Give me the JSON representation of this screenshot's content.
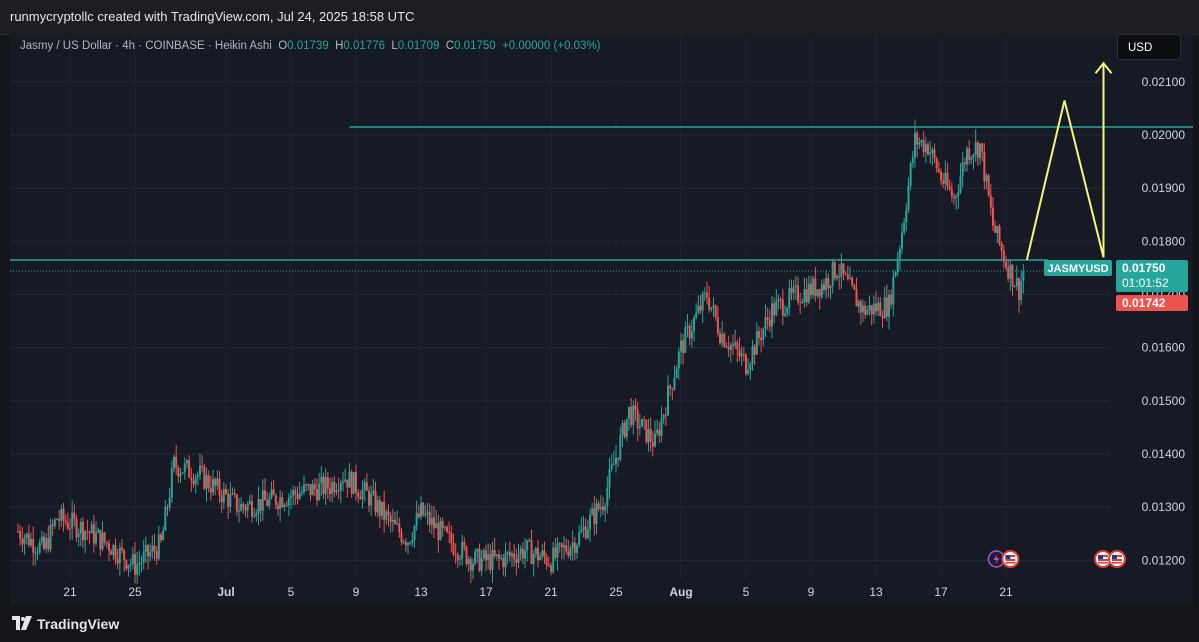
{
  "header": {
    "credit": "runmycryptollc created with TradingView.com, Jul 24, 2025 18:58 UTC"
  },
  "legend": {
    "symbol_desc": "Jasmy / US Dollar · 4h · COINBASE · Heikin Ashi",
    "open_label": "O",
    "open": "0.01739",
    "high_label": "H",
    "high": "0.01776",
    "low_label": "L",
    "low": "0.01709",
    "close_label": "C",
    "close": "0.01750",
    "change": "+0.00000 (+0.03%)"
  },
  "currency_button": "USD",
  "price_badges": {
    "symbol": "JASMYUSD",
    "last_price": "0.01750",
    "countdown": "01:01:52",
    "bid_price": "0.01742"
  },
  "footer": {
    "brand": "TradingView"
  },
  "colors": {
    "up": "#26a69a",
    "down": "#ef5350",
    "level_line": "#26a69a",
    "projection": "#f5f57a",
    "background": "#161a25"
  },
  "chart_data": {
    "type": "candlestick",
    "style": "Heikin Ashi",
    "interval": "4h",
    "exchange": "COINBASE",
    "ylim": [
      0.01165,
      0.0219
    ],
    "y_ticks": [
      "0.01200",
      "0.01300",
      "0.01400",
      "0.01500",
      "0.01600",
      "0.01700",
      "0.01800",
      "0.01900",
      "0.02000",
      "0.02100"
    ],
    "x_ticks": [
      "21",
      "25",
      "Jul",
      "5",
      "9",
      "13",
      "17",
      "21",
      "25",
      "Aug",
      "5",
      "9",
      "13",
      "17",
      "21"
    ],
    "price_path": [
      [
        0,
        0.01255
      ],
      [
        2,
        0.0122
      ],
      [
        3,
        0.0128
      ],
      [
        5,
        0.0126
      ],
      [
        7,
        0.0123
      ],
      [
        9,
        0.0119
      ],
      [
        11,
        0.0123
      ],
      [
        12,
        0.0138
      ],
      [
        14,
        0.0136
      ],
      [
        17,
        0.013
      ],
      [
        19,
        0.0131
      ],
      [
        22,
        0.0133
      ],
      [
        24,
        0.0134
      ],
      [
        25,
        0.0136
      ],
      [
        27,
        0.0132
      ],
      [
        29,
        0.0126
      ],
      [
        30,
        0.0124
      ],
      [
        31,
        0.0129
      ],
      [
        33,
        0.0124
      ],
      [
        35,
        0.012
      ],
      [
        37,
        0.012
      ],
      [
        39,
        0.0122
      ],
      [
        41,
        0.012
      ],
      [
        43,
        0.0124
      ],
      [
        45,
        0.0131
      ],
      [
        47,
        0.0148
      ],
      [
        49,
        0.0142
      ],
      [
        51,
        0.016
      ],
      [
        53,
        0.017
      ],
      [
        54,
        0.0163
      ],
      [
        56,
        0.0157
      ],
      [
        58,
        0.0167
      ],
      [
        60,
        0.017
      ],
      [
        62,
        0.0172
      ],
      [
        63,
        0.0175
      ],
      [
        65,
        0.0167
      ],
      [
        67,
        0.0168
      ],
      [
        68,
        0.0182
      ],
      [
        69,
        0.0199
      ],
      [
        70,
        0.0198
      ],
      [
        71,
        0.0192
      ],
      [
        72,
        0.0188
      ],
      [
        73,
        0.0197
      ],
      [
        74,
        0.0198
      ],
      [
        75,
        0.0183
      ],
      [
        76,
        0.0176
      ],
      [
        77,
        0.0171
      ],
      [
        77.4,
        0.0175
      ]
    ],
    "levels": [
      {
        "price": 0.02015,
        "x_start": 25.5,
        "x_end": 92
      },
      {
        "price": 0.01765,
        "x_start": 20,
        "x_end": 31
      }
    ],
    "projection_path": [
      [
        77.6,
        0.01765
      ],
      [
        80.5,
        0.02065
      ],
      [
        83.5,
        0.0177
      ],
      [
        83.5,
        0.02135
      ]
    ],
    "event_markers": [
      {
        "x": 75.8,
        "icons": [
          "lightning",
          "us-flag"
        ]
      },
      {
        "x": 84.0,
        "icons": [
          "us-flag",
          "us-flag"
        ]
      }
    ]
  }
}
